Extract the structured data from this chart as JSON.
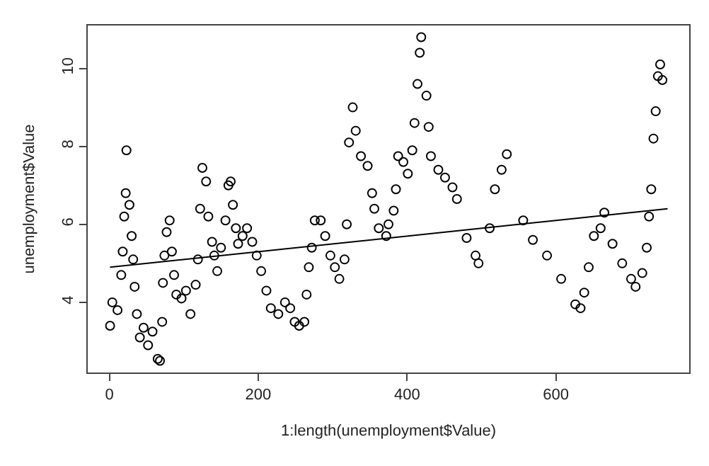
{
  "chart_data": {
    "type": "scatter",
    "xlabel": "1:length(unemployment$Value)",
    "ylabel": "unemployment$Value",
    "xlim": [
      -29,
      779
    ],
    "ylim": [
      2.2,
      11.1
    ],
    "xticks": [
      0,
      200,
      400,
      600
    ],
    "yticks": [
      4,
      6,
      8,
      10
    ],
    "grid": false,
    "marker": "circle",
    "series": [
      {
        "color": "#000000",
        "x": [
          1,
          4,
          11,
          16,
          18,
          20,
          22,
          23,
          27,
          30,
          32,
          34,
          37,
          41,
          46,
          52,
          58,
          65,
          68,
          71,
          72,
          74,
          77,
          81,
          84,
          87,
          90,
          97,
          103,
          109,
          116,
          119,
          122,
          125,
          130,
          133,
          138,
          141,
          145,
          150,
          156,
          160,
          163,
          166,
          170,
          173,
          179,
          185,
          192,
          198,
          204,
          211,
          217,
          227,
          236,
          243,
          249,
          255,
          262,
          265,
          268,
          272,
          276,
          284,
          290,
          297,
          303,
          309,
          316,
          319,
          322,
          327,
          331,
          338,
          347,
          353,
          356,
          362,
          372,
          375,
          382,
          385,
          388,
          395,
          401,
          407,
          410,
          414,
          417,
          419,
          426,
          429,
          432,
          442,
          451,
          461,
          467,
          480,
          492,
          496,
          511,
          518,
          527,
          534,
          556,
          569,
          588,
          607,
          626,
          633,
          638,
          644,
          651,
          660,
          665,
          676,
          689,
          701,
          707,
          716,
          722,
          725,
          728,
          731,
          734,
          737,
          740,
          743
        ],
        "values": [
          3.4,
          4.0,
          3.8,
          4.7,
          5.3,
          6.2,
          6.8,
          7.9,
          6.5,
          5.7,
          5.1,
          4.4,
          3.7,
          3.1,
          3.35,
          2.9,
          3.25,
          2.55,
          2.5,
          3.5,
          4.5,
          5.2,
          5.8,
          6.1,
          5.3,
          4.7,
          4.2,
          4.1,
          4.3,
          3.7,
          4.45,
          5.1,
          6.4,
          7.45,
          7.1,
          6.2,
          5.55,
          5.2,
          4.8,
          5.4,
          6.1,
          7.0,
          7.1,
          6.5,
          5.9,
          5.5,
          5.7,
          5.9,
          5.55,
          5.2,
          4.8,
          4.3,
          3.85,
          3.7,
          4.0,
          3.85,
          3.5,
          3.4,
          3.5,
          4.2,
          4.9,
          5.4,
          6.1,
          6.1,
          5.7,
          5.2,
          4.9,
          4.6,
          5.1,
          6.0,
          8.1,
          9.0,
          8.4,
          7.75,
          7.5,
          6.8,
          6.4,
          5.9,
          5.7,
          6.0,
          6.35,
          6.9,
          7.75,
          7.6,
          7.3,
          7.9,
          8.6,
          9.6,
          10.4,
          10.8,
          9.3,
          8.5,
          7.75,
          7.4,
          7.2,
          6.95,
          6.65,
          5.65,
          5.2,
          5.0,
          5.9,
          6.9,
          7.4,
          7.8,
          6.1,
          5.6,
          5.2,
          4.6,
          3.95,
          3.85,
          4.25,
          4.9,
          5.7,
          5.9,
          6.3,
          5.5,
          5.0,
          4.6,
          4.4,
          4.75,
          5.4,
          6.2,
          6.9,
          8.2,
          8.9,
          9.8,
          10.1,
          9.7
        ]
      },
      {
        "type": "line",
        "marker": "none",
        "color": "#000000",
        "x": [
          1,
          750
        ],
        "values": [
          4.9,
          6.4
        ]
      }
    ]
  }
}
